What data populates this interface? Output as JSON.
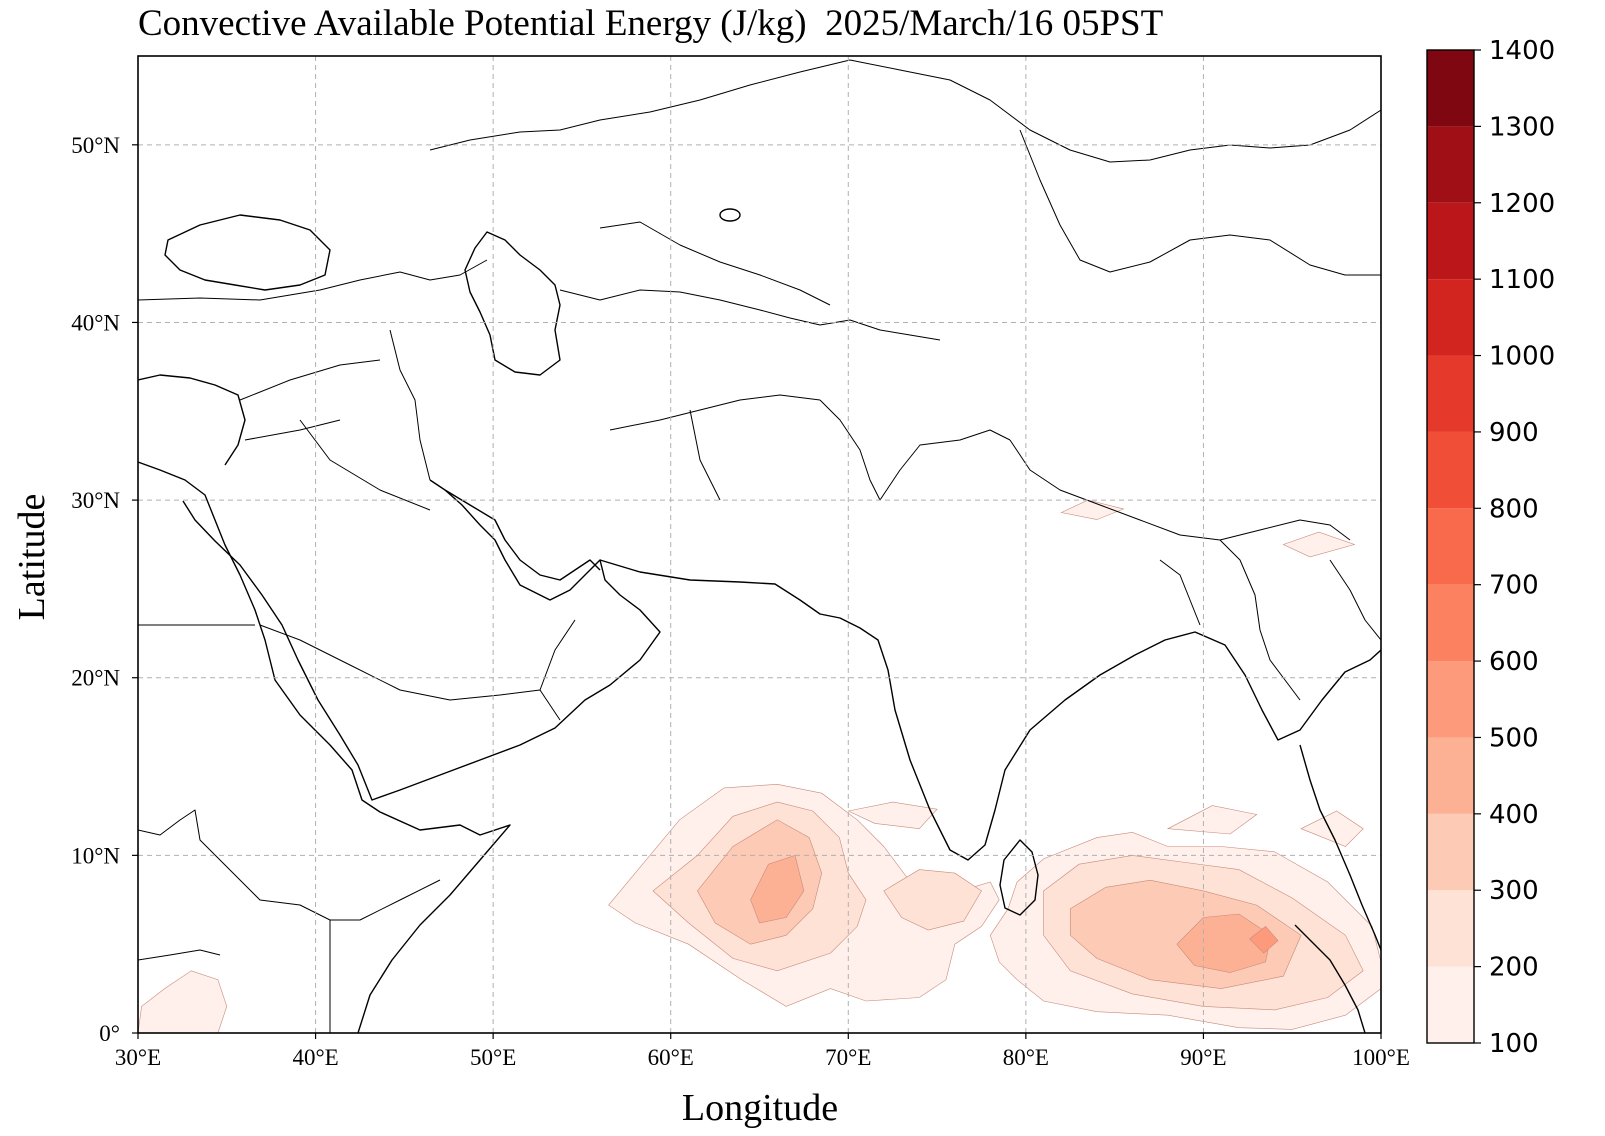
{
  "title": "Convective Available Potential Energy (J/kg)  2025/March/16 05PST",
  "chart_data": {
    "type": "heatmap",
    "title": "Convective Available Potential Energy (J/kg)  2025/March/16 05PST",
    "xlabel": "Longitude",
    "ylabel": "Latitude",
    "xlim": [
      30,
      100
    ],
    "ylim": [
      0,
      55
    ],
    "grid": true,
    "x_ticks": [
      {
        "value": 30,
        "label": "30°E"
      },
      {
        "value": 40,
        "label": "40°E"
      },
      {
        "value": 50,
        "label": "50°E"
      },
      {
        "value": 60,
        "label": "60°E"
      },
      {
        "value": 70,
        "label": "70°E"
      },
      {
        "value": 80,
        "label": "80°E"
      },
      {
        "value": 90,
        "label": "90°E"
      },
      {
        "value": 100,
        "label": "100°E"
      }
    ],
    "y_ticks": [
      {
        "value": 0,
        "label": "0°"
      },
      {
        "value": 10,
        "label": "10°N"
      },
      {
        "value": 20,
        "label": "20°N"
      },
      {
        "value": 30,
        "label": "30°N"
      },
      {
        "value": 40,
        "label": "40°N"
      },
      {
        "value": 50,
        "label": "50°N"
      }
    ],
    "colorbar": {
      "orientation": "vertical",
      "placement": "right",
      "levels": [
        {
          "from": 100,
          "to": 200,
          "color": "#fff0eb"
        },
        {
          "from": 200,
          "to": 300,
          "color": "#fee2d6"
        },
        {
          "from": 300,
          "to": 400,
          "color": "#fdcab5"
        },
        {
          "from": 400,
          "to": 500,
          "color": "#fcb195"
        },
        {
          "from": 500,
          "to": 600,
          "color": "#fc9a7b"
        },
        {
          "from": 600,
          "to": 700,
          "color": "#fb8161"
        },
        {
          "from": 700,
          "to": 800,
          "color": "#f96a4c"
        },
        {
          "from": 800,
          "to": 900,
          "color": "#f14e38"
        },
        {
          "from": 900,
          "to": 1000,
          "color": "#e53a2b"
        },
        {
          "from": 1000,
          "to": 1100,
          "color": "#d22520"
        },
        {
          "from": 1100,
          "to": 1200,
          "color": "#bb171b"
        },
        {
          "from": 1200,
          "to": 1300,
          "color": "#a10f16"
        },
        {
          "from": 1300,
          "to": 1400,
          "color": "#7e0711"
        }
      ],
      "tick_labels": [
        "100",
        "200",
        "300",
        "400",
        "500",
        "600",
        "700",
        "800",
        "900",
        "1000",
        "1100",
        "1200",
        "1300",
        "1400"
      ]
    },
    "cape_regions": [
      {
        "level": 100,
        "lonlat": [
          [
            56.5,
            7.2
          ],
          [
            58,
            9
          ],
          [
            60.5,
            12
          ],
          [
            63,
            13.8
          ],
          [
            66,
            14
          ],
          [
            68.5,
            13.5
          ],
          [
            70.5,
            12
          ],
          [
            72,
            10.5
          ],
          [
            73.5,
            8.5
          ],
          [
            75.5,
            8
          ],
          [
            77,
            8.2
          ],
          [
            78,
            8.5
          ],
          [
            78.5,
            7.5
          ],
          [
            77.5,
            6
          ],
          [
            76,
            5
          ],
          [
            75.5,
            3
          ],
          [
            74,
            2
          ],
          [
            71,
            1.8
          ],
          [
            69,
            2.5
          ],
          [
            66.5,
            1.5
          ],
          [
            64,
            3
          ],
          [
            61,
            5
          ],
          [
            58,
            6.2
          ]
        ]
      },
      {
        "level": 100,
        "lonlat": [
          [
            70,
            12.5
          ],
          [
            72.5,
            13
          ],
          [
            75,
            12.6
          ],
          [
            74,
            11.5
          ],
          [
            71.5,
            11.8
          ]
        ]
      },
      {
        "level": 100,
        "lonlat": [
          [
            79.5,
            8.5
          ],
          [
            81,
            9.8
          ],
          [
            84,
            11
          ],
          [
            86,
            11.3
          ],
          [
            88,
            10.5
          ],
          [
            91,
            10.5
          ],
          [
            94,
            10.2
          ],
          [
            97,
            8.5
          ],
          [
            99.5,
            6
          ],
          [
            100,
            4
          ],
          [
            100,
            2.5
          ],
          [
            98,
            1
          ],
          [
            95,
            0.2
          ],
          [
            92,
            0.3
          ],
          [
            88,
            1
          ],
          [
            84,
            1.2
          ],
          [
            81,
            1.8
          ],
          [
            79.5,
            3
          ],
          [
            78.5,
            4
          ],
          [
            78,
            5.5
          ],
          [
            79,
            7
          ]
        ]
      },
      {
        "level": 100,
        "lonlat": [
          [
            88,
            11.5
          ],
          [
            90.5,
            12.8
          ],
          [
            93,
            12.3
          ],
          [
            91.5,
            11.2
          ]
        ]
      },
      {
        "level": 100,
        "lonlat": [
          [
            95.5,
            11.5
          ],
          [
            97.5,
            12.5
          ],
          [
            99,
            11.5
          ],
          [
            98,
            10.5
          ]
        ]
      },
      {
        "level": 100,
        "lonlat": [
          [
            82,
            29.3
          ],
          [
            83.5,
            30
          ],
          [
            85.5,
            29.5
          ],
          [
            84,
            28.9
          ]
        ]
      },
      {
        "level": 100,
        "lonlat": [
          [
            94.5,
            27.5
          ],
          [
            96.5,
            28.2
          ],
          [
            98.5,
            27.5
          ],
          [
            96,
            26.8
          ]
        ]
      },
      {
        "level": 100,
        "lonlat": [
          [
            30,
            0
          ],
          [
            30.2,
            1.5
          ],
          [
            31.5,
            2.5
          ],
          [
            33,
            3.5
          ],
          [
            34.5,
            3
          ],
          [
            35,
            1.5
          ],
          [
            34.5,
            0
          ]
        ]
      },
      {
        "level": 200,
        "lonlat": [
          [
            59,
            8
          ],
          [
            61.5,
            10
          ],
          [
            63.5,
            12.2
          ],
          [
            66,
            13
          ],
          [
            68,
            12.5
          ],
          [
            69.5,
            11
          ],
          [
            70,
            9
          ],
          [
            71,
            7.5
          ],
          [
            70.5,
            6
          ],
          [
            69,
            4.5
          ],
          [
            66,
            3.5
          ],
          [
            63.5,
            4.2
          ],
          [
            61,
            6.2
          ]
        ]
      },
      {
        "level": 200,
        "lonlat": [
          [
            72,
            8
          ],
          [
            74,
            9.2
          ],
          [
            76,
            9
          ],
          [
            77.5,
            8
          ],
          [
            76.5,
            6.3
          ],
          [
            74.5,
            5.8
          ],
          [
            73,
            6.5
          ]
        ]
      },
      {
        "level": 200,
        "lonlat": [
          [
            81,
            8
          ],
          [
            83,
            9.5
          ],
          [
            86,
            10
          ],
          [
            89,
            9.6
          ],
          [
            92,
            9.2
          ],
          [
            95,
            7.6
          ],
          [
            98,
            5.5
          ],
          [
            99,
            3.5
          ],
          [
            97,
            2
          ],
          [
            94,
            1.3
          ],
          [
            90,
            1.5
          ],
          [
            86,
            2.2
          ],
          [
            82.5,
            3.5
          ],
          [
            81,
            5.5
          ]
        ]
      },
      {
        "level": 300,
        "lonlat": [
          [
            61.5,
            8
          ],
          [
            63.5,
            10.5
          ],
          [
            66,
            12
          ],
          [
            67.8,
            11
          ],
          [
            68.5,
            9
          ],
          [
            68,
            7
          ],
          [
            66.5,
            5.5
          ],
          [
            64.5,
            5
          ],
          [
            62.5,
            6.2
          ]
        ]
      },
      {
        "level": 300,
        "lonlat": [
          [
            82.5,
            7
          ],
          [
            84.5,
            8.2
          ],
          [
            87,
            8.6
          ],
          [
            90,
            8
          ],
          [
            93,
            7.2
          ],
          [
            95.5,
            5.5
          ],
          [
            94.5,
            3.2
          ],
          [
            91,
            2.5
          ],
          [
            87,
            3
          ],
          [
            84,
            4.2
          ],
          [
            82.5,
            5.5
          ]
        ]
      },
      {
        "level": 400,
        "lonlat": [
          [
            64.5,
            7.5
          ],
          [
            65.5,
            9.5
          ],
          [
            67,
            10
          ],
          [
            67.5,
            8
          ],
          [
            66.5,
            6.5
          ],
          [
            65,
            6.2
          ]
        ]
      },
      {
        "level": 400,
        "lonlat": [
          [
            88.5,
            5
          ],
          [
            90,
            6.5
          ],
          [
            92,
            6.7
          ],
          [
            93.8,
            5.5
          ],
          [
            93.5,
            4
          ],
          [
            91.5,
            3.4
          ],
          [
            89.5,
            3.8
          ]
        ]
      },
      {
        "level": 500,
        "lonlat": [
          [
            92.6,
            5.3
          ],
          [
            93.5,
            6
          ],
          [
            94.2,
            5.2
          ],
          [
            93.4,
            4.5
          ]
        ]
      }
    ]
  }
}
